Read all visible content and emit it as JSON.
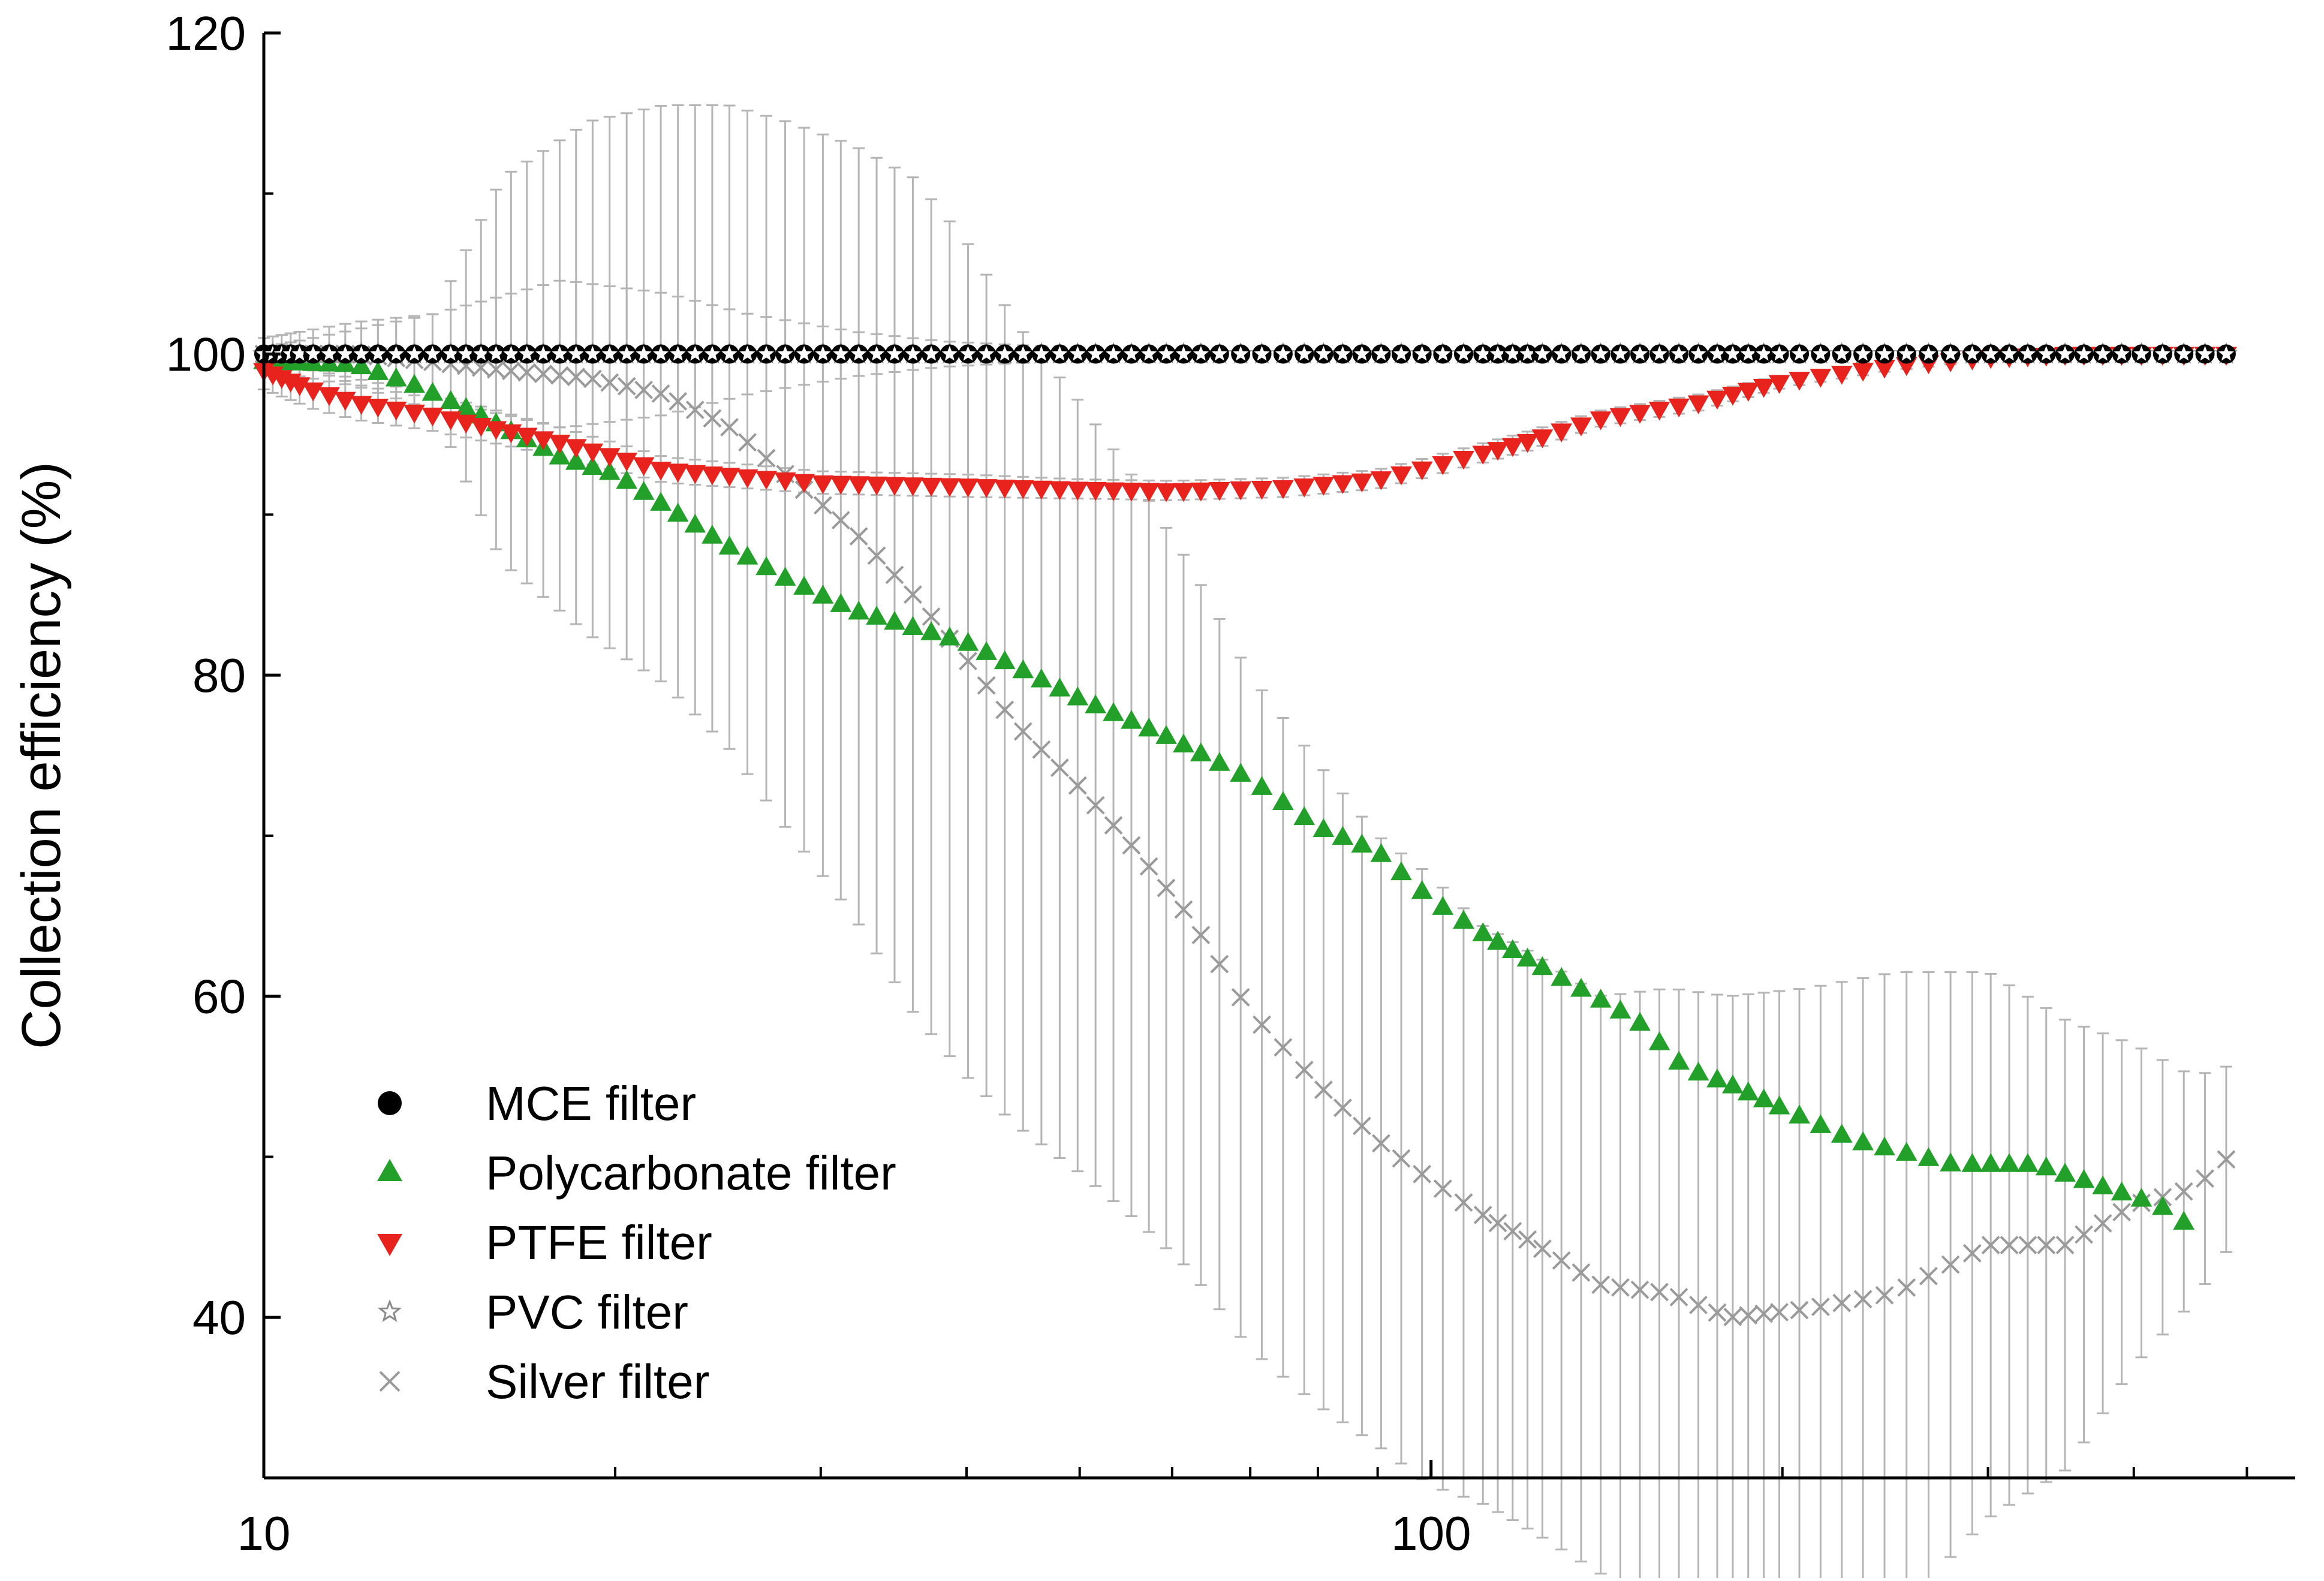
{
  "chart_data": {
    "type": "scatter",
    "title": "",
    "xlabel": "",
    "ylabel": "Collection efficiency (%)",
    "xscale": "log",
    "xlim": [
      10,
      550
    ],
    "ylim": [
      30,
      120
    ],
    "x_ticks": [
      {
        "value": 10,
        "label": "10"
      },
      {
        "value": 100,
        "label": "100"
      }
    ],
    "y_ticks": [
      {
        "value": 40,
        "label": "40"
      },
      {
        "value": 60,
        "label": "60"
      },
      {
        "value": 80,
        "label": "80"
      },
      {
        "value": 100,
        "label": "100"
      },
      {
        "value": 120,
        "label": "120"
      }
    ],
    "grid": false,
    "legend_position": "bottom-left",
    "x_anchors": [
      10,
      10.8,
      12.4,
      14.5,
      16.5,
      19.0,
      22.0,
      25.5,
      30.0,
      35.0,
      41.0,
      48.0,
      56.0,
      65.0,
      78.0,
      92.0,
      110.0,
      125.0,
      148.0,
      175.0,
      200.0,
      240.0,
      290.0,
      340.0,
      400.0,
      480.0
    ],
    "series": [
      {
        "name": "MCE filter",
        "marker": "circle",
        "color": "#000000",
        "x": [
          10,
          480
        ],
        "values": [
          100,
          100
        ],
        "errors": [
          0,
          0
        ]
      },
      {
        "name": "Polycarbonate filter",
        "marker": "triangle-up",
        "color": "#22a02a",
        "x": [
          10,
          12,
          13.5,
          15,
          18,
          20,
          25,
          28,
          32,
          40,
          50,
          60,
          70,
          80,
          90,
          100,
          110,
          130,
          150,
          165,
          180,
          200,
          230,
          280,
          330,
          380,
          420,
          460
        ],
        "values": [
          99.5,
          99.3,
          98,
          96.5,
          93.5,
          92.5,
          88,
          86,
          84,
          82,
          78.5,
          76,
          73.5,
          70.5,
          69,
          66,
          64,
          61,
          58.5,
          55.5,
          54.5,
          53,
          51,
          49.5,
          49.5,
          48,
          47,
          45
        ],
        "errors": []
      },
      {
        "name": "PTFE filter",
        "marker": "triangle-down",
        "color": "#e8231e",
        "x": [
          10,
          11,
          12,
          14,
          18,
          22,
          30,
          40,
          50,
          60,
          75,
          90,
          100,
          120,
          140,
          170,
          200,
          250,
          300,
          350,
          400,
          480
        ],
        "values": [
          99,
          97.8,
          97,
          96.2,
          94.5,
          92.8,
          92,
          91.8,
          91.6,
          91.5,
          91.7,
          92.2,
          93,
          94.5,
          96,
          97,
          98.3,
          99.3,
          99.8,
          100,
          100,
          100
        ],
        "errors": [
          1.2,
          1.2,
          1.1,
          1,
          0.9,
          0.8,
          0.7,
          0.7,
          0.6,
          0.6,
          0.6,
          0.6,
          0.6,
          0.6,
          0.5,
          0.5,
          0.4,
          0.3,
          0.2,
          0.1,
          0.1,
          0
        ]
      },
      {
        "name": "PVC filter",
        "marker": "star",
        "color": "#8a8a8a",
        "x": [
          10,
          14,
          18,
          22,
          26,
          32,
          38,
          46,
          56,
          68,
          80,
          100,
          130,
          150,
          175,
          200,
          240,
          280,
          330,
          400,
          480
        ],
        "values": [
          100,
          100,
          100,
          100,
          100,
          100,
          100,
          100,
          100,
          100,
          100,
          100,
          100,
          100,
          100,
          100,
          100,
          100,
          100,
          100,
          100
        ],
        "errors": [
          0.4,
          2.5,
          4.6,
          3.8,
          2.5,
          1.4,
          0.8,
          0.5,
          0.4,
          0.3,
          0.3,
          0.3,
          0.2,
          0.2,
          0.2,
          0.2,
          0.1,
          0.1,
          0,
          0,
          0
        ]
      },
      {
        "name": "Silver filter",
        "marker": "x",
        "color": "#9a9a9a",
        "x": [
          10,
          12,
          14,
          16,
          19,
          22,
          25,
          28,
          32,
          36,
          40,
          44,
          50,
          56,
          62,
          70,
          80,
          90,
          100,
          110,
          120,
          140,
          160,
          180,
          210,
          250,
          300,
          350,
          400,
          450,
          500
        ],
        "values": [
          100,
          100,
          99.5,
          99,
          98.5,
          97.5,
          95.5,
          92.5,
          89,
          85,
          81,
          77,
          73,
          69,
          65,
          59,
          54.5,
          51,
          48.5,
          46.5,
          45,
          42,
          41.5,
          40,
          40.5,
          41.5,
          44.5,
          44.5,
          47,
          48,
          51
        ],
        "errors": [
          1,
          2,
          3,
          12,
          16,
          18,
          20,
          22,
          24,
          26,
          26,
          25,
          24,
          23,
          22,
          21,
          20,
          19,
          19,
          18,
          18,
          18,
          19,
          20,
          20,
          20,
          17,
          14,
          10,
          7,
          5
        ]
      }
    ],
    "legend": [
      {
        "label": "MCE filter",
        "marker": "circle",
        "color": "#000000"
      },
      {
        "label": "Polycarbonate filter",
        "marker": "triangle-up",
        "color": "#22a02a"
      },
      {
        "label": "PTFE filter",
        "marker": "triangle-down",
        "color": "#e8231e"
      },
      {
        "label": "PVC filter",
        "marker": "star",
        "color": "#8a8a8a"
      },
      {
        "label": "Silver filter",
        "marker": "x",
        "color": "#9a9a9a"
      }
    ]
  }
}
